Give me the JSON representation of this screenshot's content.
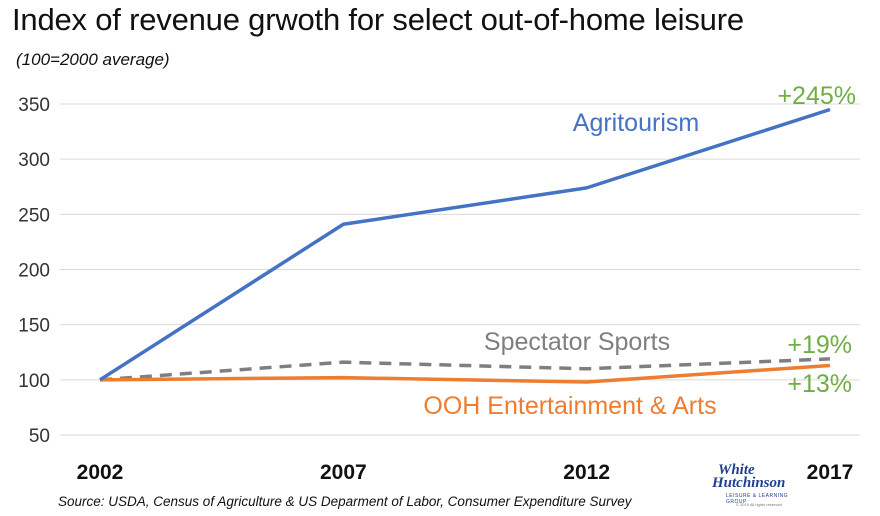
{
  "title": "Index of revenue grwoth for select out-of-home leisure",
  "subtitle": "(100=2000  average)",
  "source": "Source: USDA, Census of Agriculture & US Deparment of Labor, Consumer Expenditure Survey",
  "logo": {
    "line1": "White",
    "line2": "Hutchinson",
    "line3": "LEISURE & LEARNING GROUP",
    "line4": "© 2019 All rights reserved"
  },
  "chart_data": {
    "type": "line",
    "title": "Index of revenue grwoth for select out-of-home leisure",
    "subtitle": "(100=2000  average)",
    "xlabel": "",
    "ylabel": "",
    "x": [
      "2002",
      "2007",
      "2012",
      "2017"
    ],
    "ylim": [
      50,
      350
    ],
    "yticks": [
      50,
      100,
      150,
      200,
      250,
      300,
      350
    ],
    "grid": "horizontal",
    "legend": "none (series labeled inline)",
    "series": [
      {
        "name": "Agritourism",
        "values": [
          100,
          241,
          274,
          345
        ],
        "color": "#4472c4",
        "style": "solid",
        "change_label": "+245%"
      },
      {
        "name": "Spectator Sports",
        "values": [
          100,
          116,
          110,
          119
        ],
        "color": "#7f7f7f",
        "style": "dashed",
        "change_label": "+19%"
      },
      {
        "name": "OOH Entertainment & Arts",
        "values": [
          100,
          102,
          98,
          113
        ],
        "color": "#ed7d31",
        "style": "solid",
        "change_label": "+13%"
      }
    ],
    "change_label_color": "#6fae45"
  }
}
